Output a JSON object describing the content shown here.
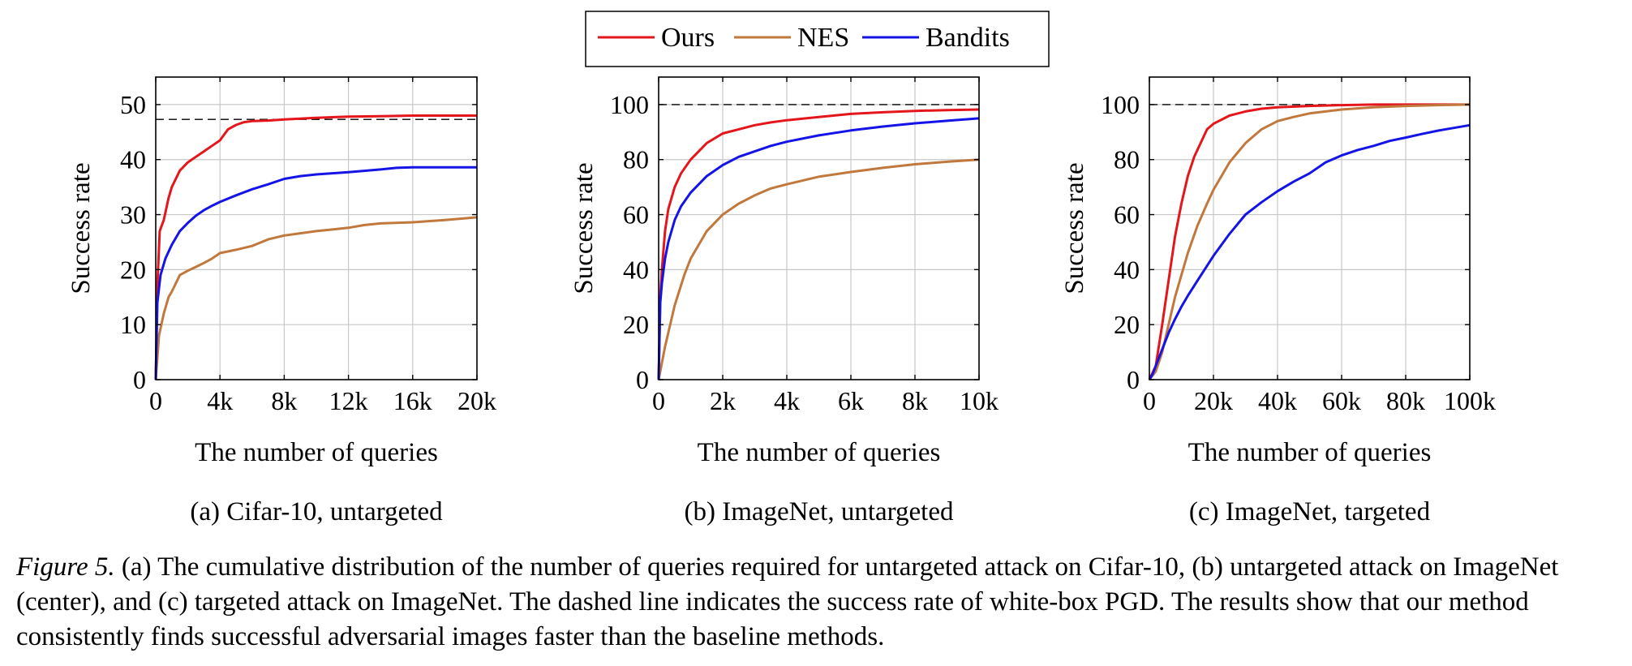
{
  "legend": {
    "entries": [
      {
        "name": "Ours",
        "color": "#e4161b"
      },
      {
        "name": "NES",
        "color": "#c1783d"
      },
      {
        "name": "Bandits",
        "color": "#1414e6"
      }
    ]
  },
  "caption": {
    "label": "Figure 5.",
    "text": "(a) The cumulative distribution of the number of queries required for untargeted attack on Cifar-10, (b) untargeted attack on ImageNet (center), and (c) targeted attack on ImageNet. The dashed line indicates the success rate of white-box PGD. The results show that our method consistently finds successful adversarial images faster than the baseline methods."
  },
  "chart_data": [
    {
      "type": "line",
      "subtitle": "(a) Cifar-10, untargeted",
      "xlabel": "The number of queries",
      "ylabel": "Success rate",
      "xlim": [
        0,
        20000
      ],
      "ylim": [
        0,
        55
      ],
      "xticks": [
        0,
        4000,
        8000,
        12000,
        16000,
        20000
      ],
      "xtick_labels": [
        "0",
        "4k",
        "8k",
        "12k",
        "16k",
        "20k"
      ],
      "yticks": [
        0,
        10,
        20,
        30,
        40,
        50
      ],
      "ytick_labels": [
        "0",
        "10",
        "20",
        "30",
        "40",
        "50"
      ],
      "grid": true,
      "reference_line": 47.3,
      "series": [
        {
          "name": "Ours",
          "color": "#e4161b",
          "x": [
            0,
            100,
            250,
            500,
            800,
            1000,
            1500,
            2000,
            2500,
            3000,
            3500,
            4000,
            4500,
            5000,
            5500,
            6000,
            7000,
            8000,
            10000,
            12000,
            14000,
            16000,
            18000,
            20000
          ],
          "y": [
            0,
            17,
            27,
            29,
            33,
            35,
            38,
            39.5,
            40.5,
            41.5,
            42.5,
            43.5,
            45.5,
            46.3,
            46.8,
            47,
            47.1,
            47.3,
            47.6,
            47.8,
            47.9,
            48,
            48,
            48
          ]
        },
        {
          "name": "NES",
          "color": "#c1783d",
          "x": [
            0,
            200,
            500,
            800,
            1000,
            1500,
            2000,
            2500,
            3000,
            3500,
            4000,
            5000,
            6000,
            7000,
            8000,
            9000,
            10000,
            11000,
            12000,
            13000,
            14000,
            16000,
            18000,
            20000
          ],
          "y": [
            0,
            8,
            12,
            15,
            16,
            19,
            19.8,
            20.5,
            21.2,
            22,
            23,
            23.6,
            24.3,
            25.5,
            26.2,
            26.6,
            27,
            27.3,
            27.6,
            28.1,
            28.4,
            28.6,
            29,
            29.5
          ]
        },
        {
          "name": "Bandits",
          "color": "#1414e6",
          "x": [
            0,
            100,
            300,
            600,
            1000,
            1500,
            2000,
            2500,
            3000,
            3500,
            4000,
            5000,
            6000,
            7000,
            8000,
            9000,
            10000,
            12000,
            14000,
            15000,
            16000,
            18000,
            20000
          ],
          "y": [
            0,
            14,
            19,
            22,
            24.5,
            27,
            28.5,
            29.8,
            30.8,
            31.6,
            32.3,
            33.5,
            34.6,
            35.5,
            36.5,
            37,
            37.3,
            37.7,
            38.2,
            38.5,
            38.6,
            38.6,
            38.6
          ]
        }
      ]
    },
    {
      "type": "line",
      "subtitle": "(b) ImageNet, untargeted",
      "xlabel": "The number of queries",
      "ylabel": "Success rate",
      "xlim": [
        0,
        10000
      ],
      "ylim": [
        0,
        110
      ],
      "xticks": [
        0,
        2000,
        4000,
        6000,
        8000,
        10000
      ],
      "xtick_labels": [
        "0",
        "2k",
        "4k",
        "6k",
        "8k",
        "10k"
      ],
      "yticks": [
        0,
        20,
        40,
        60,
        80,
        100
      ],
      "ytick_labels": [
        "0",
        "20",
        "40",
        "60",
        "80",
        "100"
      ],
      "grid": true,
      "reference_line": 100,
      "series": [
        {
          "name": "Ours",
          "color": "#e4161b",
          "x": [
            0,
            50,
            100,
            200,
            300,
            500,
            700,
            1000,
            1500,
            2000,
            2500,
            3000,
            3500,
            4000,
            5000,
            6000,
            7000,
            8000,
            9000,
            10000
          ],
          "y": [
            0,
            30,
            40,
            54,
            62,
            70,
            75,
            80,
            86,
            89.5,
            91,
            92.5,
            93.5,
            94.3,
            95.5,
            96.6,
            97.2,
            97.7,
            98,
            98.2
          ]
        },
        {
          "name": "NES",
          "color": "#c1783d",
          "x": [
            0,
            200,
            500,
            800,
            1000,
            1500,
            2000,
            2500,
            3000,
            3500,
            4000,
            5000,
            6000,
            7000,
            8000,
            9000,
            10000
          ],
          "y": [
            0,
            12,
            27,
            38,
            44,
            54,
            60,
            64,
            67,
            69.5,
            71,
            73.8,
            75.5,
            77,
            78.3,
            79.2,
            80
          ]
        },
        {
          "name": "Bandits",
          "color": "#1414e6",
          "x": [
            0,
            50,
            100,
            200,
            300,
            500,
            700,
            1000,
            1500,
            2000,
            2500,
            3000,
            3500,
            4000,
            5000,
            6000,
            7000,
            8000,
            9000,
            10000
          ],
          "y": [
            0,
            28,
            35,
            44,
            50,
            58,
            63,
            68,
            74,
            78,
            81,
            83,
            85,
            86.5,
            88.8,
            90.6,
            92,
            93.2,
            94.1,
            95
          ]
        }
      ]
    },
    {
      "type": "line",
      "subtitle": "(c) ImageNet, targeted",
      "xlabel": "The number of queries",
      "ylabel": "Success rate",
      "xlim": [
        0,
        100000
      ],
      "ylim": [
        0,
        110
      ],
      "xticks": [
        0,
        20000,
        40000,
        60000,
        80000,
        100000
      ],
      "xtick_labels": [
        "0",
        "20k",
        "40k",
        "60k",
        "80k",
        "100k"
      ],
      "yticks": [
        0,
        20,
        40,
        60,
        80,
        100
      ],
      "ytick_labels": [
        "0",
        "20",
        "40",
        "60",
        "80",
        "100"
      ],
      "grid": true,
      "reference_line": 100,
      "series": [
        {
          "name": "Ours",
          "color": "#e4161b",
          "x": [
            0,
            2000,
            4000,
            6000,
            8000,
            10000,
            12000,
            14000,
            16000,
            18000,
            20000,
            25000,
            30000,
            35000,
            40000,
            50000,
            60000,
            70000,
            80000,
            100000
          ],
          "y": [
            0,
            5,
            20,
            36,
            52,
            64,
            74,
            81,
            86,
            91,
            93,
            96,
            97.5,
            98.5,
            99,
            99.5,
            99.8,
            100,
            100,
            100
          ]
        },
        {
          "name": "NES",
          "color": "#c1783d",
          "x": [
            0,
            2000,
            4000,
            6000,
            8000,
            10000,
            12000,
            15000,
            18000,
            20000,
            25000,
            30000,
            35000,
            40000,
            45000,
            50000,
            55000,
            60000,
            70000,
            80000,
            90000,
            100000
          ],
          "y": [
            0,
            3,
            10,
            20,
            30,
            38,
            46,
            56,
            64,
            69,
            79,
            86,
            91,
            94,
            95.5,
            96.8,
            97.5,
            98.2,
            99,
            99.5,
            99.8,
            100
          ]
        },
        {
          "name": "Bandits",
          "color": "#1414e6",
          "x": [
            0,
            1000,
            2000,
            4000,
            6000,
            8000,
            10000,
            12000,
            15000,
            20000,
            25000,
            30000,
            35000,
            40000,
            45000,
            50000,
            55000,
            60000,
            65000,
            70000,
            75000,
            80000,
            85000,
            90000,
            95000,
            100000
          ],
          "y": [
            0,
            2,
            5,
            11,
            17,
            22,
            26.5,
            30.5,
            36,
            45,
            53,
            60,
            64.5,
            68.5,
            72,
            75,
            79,
            81.5,
            83.5,
            85,
            86.8,
            88,
            89.3,
            90.5,
            91.5,
            92.5
          ]
        }
      ]
    }
  ]
}
